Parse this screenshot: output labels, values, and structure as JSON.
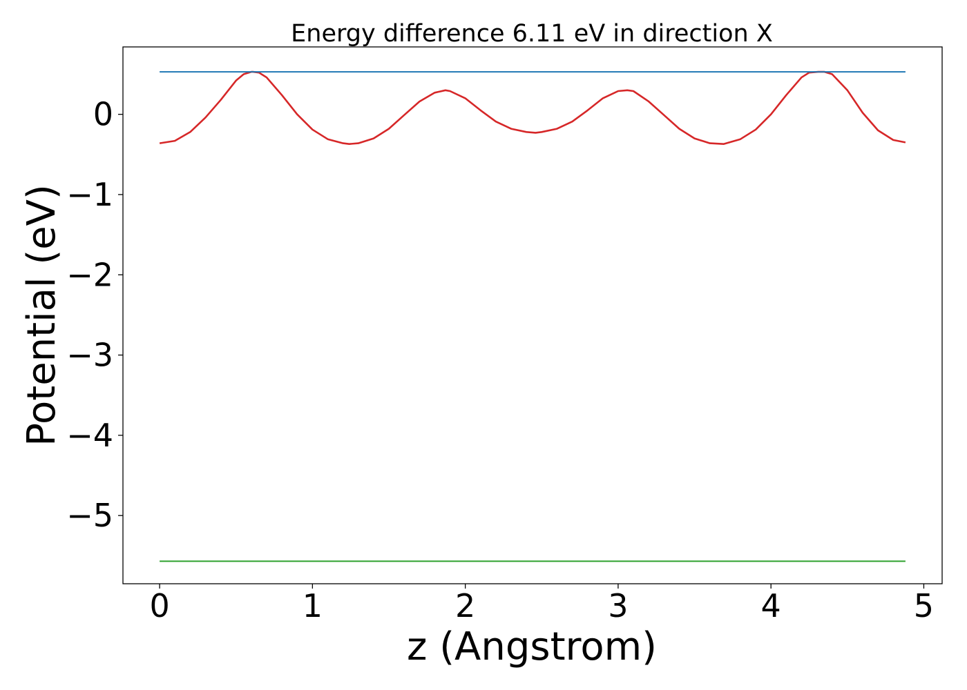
{
  "chart_data": {
    "type": "line",
    "title": "Energy difference 6.11 eV in direction X",
    "xlabel": "z (Angstrom)",
    "ylabel": "Potential (eV)",
    "xlim": [
      -0.24,
      5.12
    ],
    "ylim": [
      -5.85,
      0.84
    ],
    "xticks": [
      0,
      1,
      2,
      3,
      4,
      5
    ],
    "xtick_labels": [
      "0",
      "1",
      "2",
      "3",
      "4",
      "5"
    ],
    "yticks": [
      0,
      -1,
      -2,
      -3,
      -4,
      -5
    ],
    "ytick_labels": [
      "0",
      "−1",
      "−2",
      "−3",
      "−4",
      "−5"
    ],
    "grid": false,
    "series": [
      {
        "color": "#d62728",
        "x": [
          0,
          0.1,
          0.2,
          0.3,
          0.4,
          0.5,
          0.55,
          0.6,
          0.61,
          0.65,
          0.7,
          0.8,
          0.9,
          1.0,
          1.1,
          1.2,
          1.24,
          1.3,
          1.4,
          1.5,
          1.6,
          1.7,
          1.8,
          1.87,
          1.9,
          2.0,
          2.1,
          2.2,
          2.3,
          2.4,
          2.46,
          2.5,
          2.6,
          2.7,
          2.8,
          2.9,
          3.0,
          3.06,
          3.1,
          3.2,
          3.3,
          3.4,
          3.5,
          3.6,
          3.69,
          3.8,
          3.9,
          4.0,
          4.1,
          4.2,
          4.25,
          4.31,
          4.35,
          4.4,
          4.5,
          4.6,
          4.7,
          4.8,
          4.88
        ],
        "y": [
          -0.36,
          -0.33,
          -0.22,
          -0.04,
          0.18,
          0.42,
          0.5,
          0.53,
          0.53,
          0.52,
          0.46,
          0.24,
          0.0,
          -0.19,
          -0.31,
          -0.36,
          -0.37,
          -0.36,
          -0.3,
          -0.18,
          -0.01,
          0.16,
          0.27,
          0.3,
          0.29,
          0.2,
          0.05,
          -0.09,
          -0.18,
          -0.22,
          -0.23,
          -0.22,
          -0.18,
          -0.09,
          0.05,
          0.2,
          0.29,
          0.3,
          0.29,
          0.16,
          -0.01,
          -0.18,
          -0.3,
          -0.36,
          -0.37,
          -0.31,
          -0.19,
          0.0,
          0.24,
          0.46,
          0.52,
          0.53,
          0.53,
          0.5,
          0.3,
          0.02,
          -0.2,
          -0.32,
          -0.35
        ]
      },
      {
        "color": "#1f77b4",
        "x": [
          0,
          4.88
        ],
        "y": [
          0.53,
          0.53
        ]
      },
      {
        "color": "#2ca02c",
        "x": [
          0,
          4.88
        ],
        "y": [
          -5.57,
          -5.57
        ]
      }
    ]
  }
}
